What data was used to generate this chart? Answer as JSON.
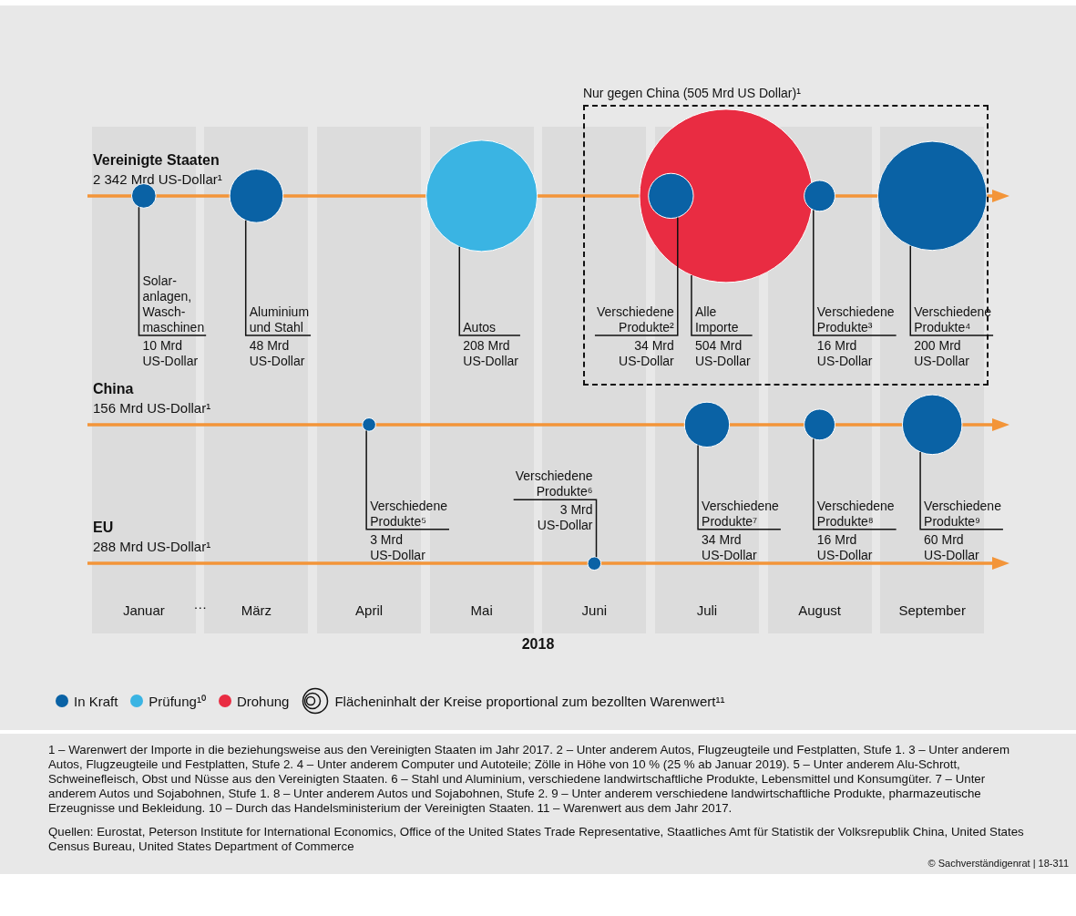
{
  "chart_data": {
    "type": "other",
    "xlabel": "2018",
    "categories": [
      "Januar",
      "März",
      "April",
      "Mai",
      "Juni",
      "Juli",
      "August",
      "September"
    ],
    "series": [
      {
        "name": "Vereinigte Staaten",
        "values": [
          10,
          48,
          null,
          208,
          null,
          34,
          16,
          200
        ],
        "colors": [
          "#0a62a5",
          "#0a62a5",
          null,
          "#3ab4e3",
          null,
          "#0a62a5",
          "#0a62a5",
          "#0a62a5"
        ],
        "value_labels": [
          "Solar-\nanlagen,\nWasch-\nmaschinen\n10 Mrd\nUS-Dollar",
          "Aluminium\nund Stahl\n48 Mrd\nUS-Dollar",
          null,
          "Autos\n208 Mrd\nUS-Dollar",
          null,
          "Verschiedene\nProdukte²\n34 Mrd\nUS-Dollar",
          "Verschiedene\nProdukte³\n16 Mrd\nUS-Dollar",
          "Verschiedene\nProdukte⁴\n200 Mrd\nUS-Dollar"
        ]
      },
      {
        "values": [
          null,
          null,
          null,
          null,
          null,
          504,
          null,
          null
        ],
        "colors": [
          null,
          null,
          null,
          null,
          null,
          "#e92c42",
          null,
          null
        ],
        "value_labels": [
          null,
          null,
          null,
          null,
          null,
          "Alle\nImporte\n504 Mrd\nUS-Dollar",
          null,
          null
        ]
      },
      {
        "name": "China",
        "values": [
          null,
          null,
          3,
          null,
          null,
          34,
          16,
          60
        ],
        "colors": [
          null,
          null,
          "#0a62a5",
          null,
          null,
          "#0a62a5",
          "#0a62a5",
          "#0a62a5"
        ],
        "value_labels": [
          null,
          null,
          "Verschiedene\nProdukte⁵\n3 Mrd\nUS-Dollar",
          null,
          null,
          "Verschiedene\nProdukte⁷\n34 Mrd\nUS-Dollar",
          "Verschiedene\nProdukte⁸\n16 Mrd\nUS-Dollar",
          "Verschiedene\nProdukte⁹\n60 Mrd\nUS-Dollar"
        ]
      },
      {
        "name": "EU",
        "values": [
          null,
          null,
          null,
          null,
          3,
          null,
          null,
          null
        ],
        "colors": [
          null,
          null,
          null,
          null,
          "#0a62a5",
          null,
          null,
          null
        ],
        "value_labels": [
          null,
          null,
          null,
          null,
          "Verschiedene\nProdukte⁶\n3 Mrd\nUS-Dollar",
          null,
          null,
          null
        ]
      }
    ],
    "annotations": [
      "2 342 Mrd US-Dollar¹",
      "156 Mrd US-Dollar¹",
      "288 Mrd US-Dollar¹",
      "…",
      "Nur gegen China (505 Mrd US Dollar)¹",
      "In Kraft",
      "Prüfung¹⁰",
      "Drohung",
      "Flächeninhalt der Kreise proportional zum bezollten Warenwert¹¹",
      "1 – Warenwert der Importe in die beziehungsweise aus den Vereinigten Staaten im Jahr 2017.  2 – Unter anderem Autos, Flugzeugteile und Festplatten, Stufe 1.  3 – Unter anderem Autos, Flugzeugteile und Festplatten, Stufe 2.  4 – Unter anderem Computer und Autoteile; Zölle in Höhe von 10 % (25 % ab Januar 2019).  5 – Unter anderem Alu-Schrott, Schweinefleisch, Obst und Nüsse aus den Vereinigten Staaten.  6 – Stahl und Aluminium, verschiedene landwirtschaftliche Produkte, Lebensmittel und Konsumgüter.  7 – Unter anderem Autos und Sojabohnen, Stufe 1.  8 – Unter anderem Autos und Sojabohnen, Stufe 2.  9 – Unter anderem verschiedene landwirtschaftliche Produkte, pharmazeutische Erzeugnisse und Bekleidung.  10 – Durch das Handelsministerium der Vereinigten Staaten.  11 – Warenwert aus dem Jahr 2017.",
      "Quellen: Eurostat, Peterson Institute for International Economics, Office of the United States Trade Representative, Staatliches Amt für Statistik der Volksrepublik China, United States Census Bureau, United States Department of Commerce",
      "© Sachverständigenrat | 18-311"
    ]
  }
}
